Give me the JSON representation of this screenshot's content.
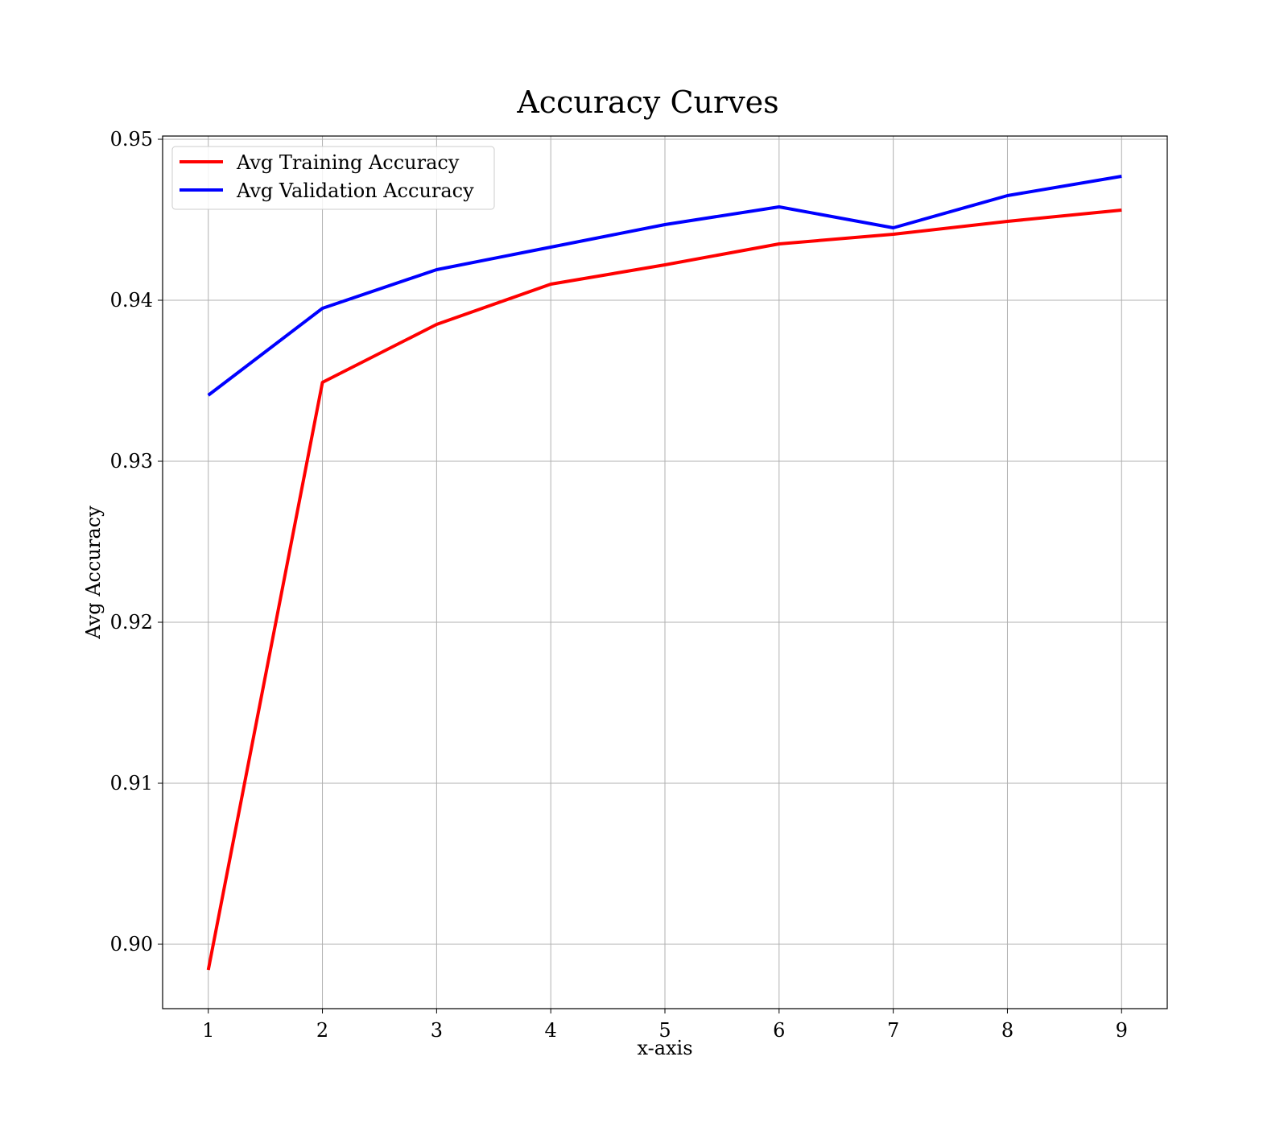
{
  "chart_data": {
    "type": "line",
    "title": "Accuracy Curves",
    "xlabel": "x-axis",
    "ylabel": "Avg Accuracy",
    "x": [
      1,
      2,
      3,
      4,
      5,
      6,
      7,
      8,
      9
    ],
    "xticks": [
      "1",
      "2",
      "3",
      "4",
      "5",
      "6",
      "7",
      "8",
      "9"
    ],
    "yticks": [
      "0.90",
      "0.91",
      "0.92",
      "0.93",
      "0.94",
      "0.95"
    ],
    "ytick_values": [
      0.9,
      0.91,
      0.92,
      0.93,
      0.94,
      0.95
    ],
    "xlim": [
      0.6,
      9.4
    ],
    "ylim": [
      0.896,
      0.9502
    ],
    "grid": true,
    "legend_position": "top-left",
    "series": [
      {
        "name": "Avg Training Accuracy",
        "color": "#ff0000",
        "values": [
          0.8984,
          0.9349,
          0.9385,
          0.941,
          0.9422,
          0.9435,
          0.9441,
          0.9449,
          0.9456
        ]
      },
      {
        "name": "Avg Validation Accuracy",
        "color": "#0000ff",
        "values": [
          0.9341,
          0.9395,
          0.9419,
          0.9433,
          0.9447,
          0.9458,
          0.9445,
          0.9465,
          0.9477
        ]
      }
    ]
  }
}
